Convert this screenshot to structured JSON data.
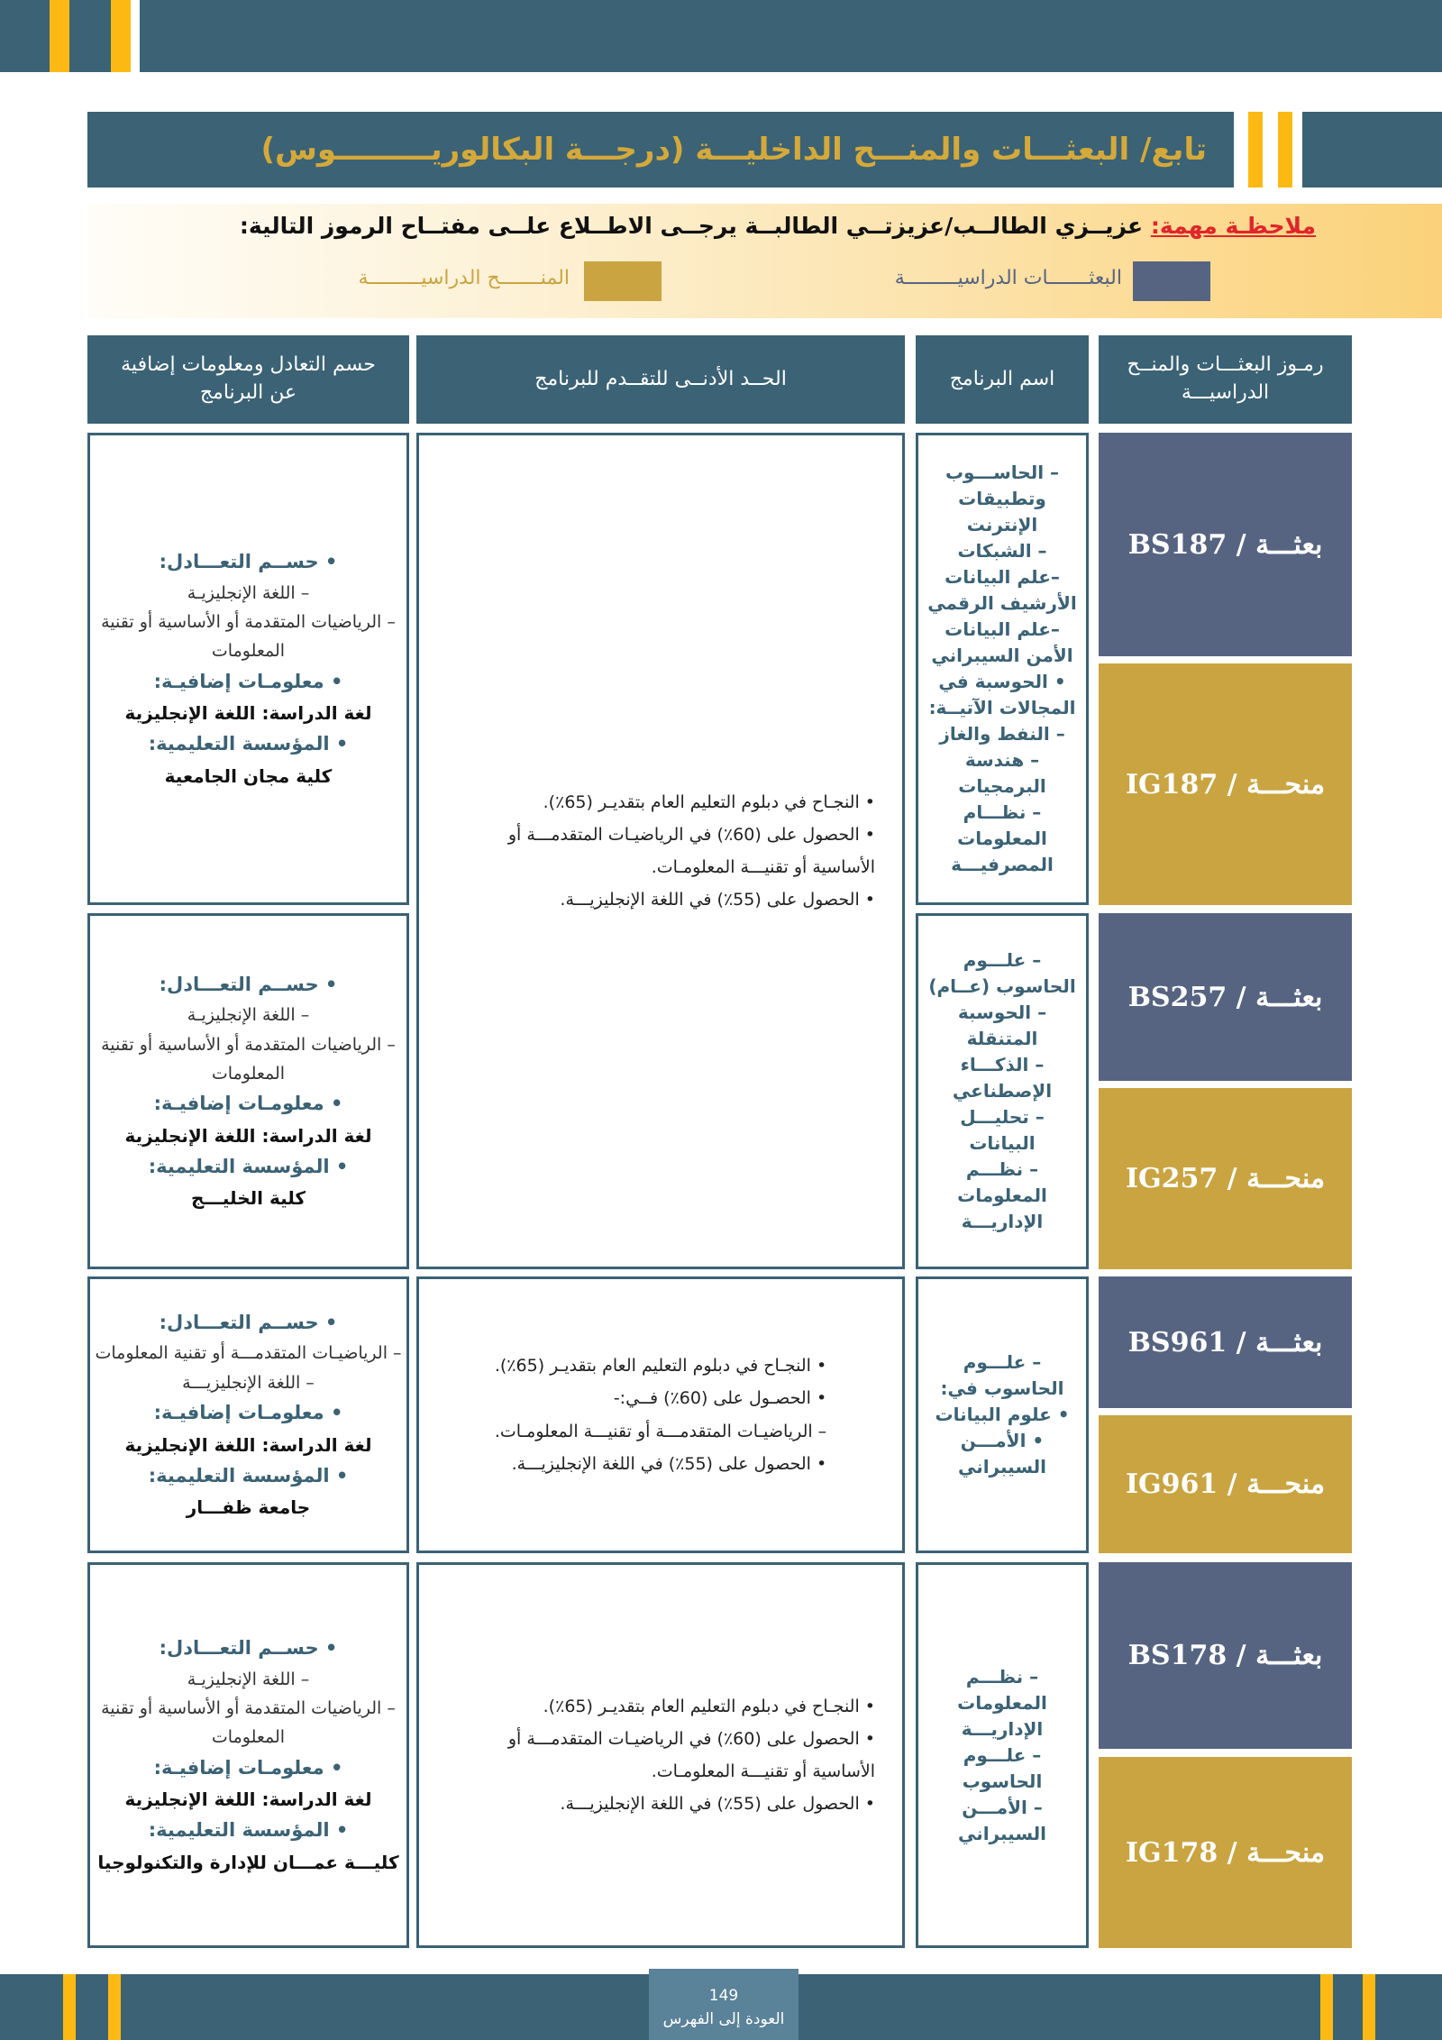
{
  "title": "تابع/ البعثـــات والمنـــح الداخليـــة (درجـــة البكالوريـــــــــوس)",
  "note": {
    "label": "ملاحظـة مهمة:",
    "text": " عزيــزي الطالــب/عزيزتــي الطالبــة يرجــى الاطــلاع علــى مفتــاح الرموز التالية:"
  },
  "legend": [
    {
      "label": "البعثـــــــات الدراسيـــــــــة",
      "color": "#566482"
    },
    {
      "label": "المنـــــــح الدراسيـــــــــة",
      "color": "#c9a440"
    }
  ],
  "headers": [
    "رمـوز البعثـــات والمنــح الدراسيـــة",
    "اسم البرنامج",
    "الحــد الأدنــى للتقــدم للبرنامج",
    "حسم التعادل ومعلومات إضافية عن البرنامج"
  ],
  "rows": [
    {
      "bs": "BS187 / بعثـــة",
      "ig": "IG187 / منحـــة",
      "program": [
        "– الحاســـوب وتطبيقات الإنترنت",
        "– الشبكات",
        "–علم البيانات الأرشيف الرقمي",
        "–علم البيانات الأمن السيبراني",
        "• الحوسبة في المجالات الآتيــة:",
        "– النفط والغاز",
        "– هندسة البرمجيات",
        "– نظـــام المعلومات المصرفيـــة"
      ],
      "info": [
        "• حســم التعـــادل:",
        "– اللغة الإنجليزيـة",
        "– الرياضيات المتقدمة أو الأساسية أو تقنية المعلومات",
        "• معلومـات إضافيـة:",
        "لغة الدراسة: اللغة الإنجليزية",
        "• المؤسسة التعليمية:",
        "كلية مجان الجامعية"
      ]
    },
    {
      "bs": "BS257 / بعثـــة",
      "ig": "IG257 / منحـــة",
      "program": [
        "– علـــوم الحاسوب (عــام)",
        "– الحوسبة المتنقلة",
        "– الذكـــاء الإصطناعي",
        "– تحليـــل البيانات",
        "– نظـــم المعلومات الإداريـــة"
      ],
      "info": [
        "• حســم التعـــادل:",
        "– اللغة الإنجليزيـة",
        "– الرياضيات المتقدمة أو الأساسية أو تقنية المعلومات",
        "• معلومـات إضافيـة:",
        "لغة الدراسة: اللغة الإنجليزية",
        "• المؤسسة التعليمية:",
        "كلية الخليـــج"
      ]
    },
    {
      "bs": "BS961 / بعثـــة",
      "ig": "IG961 / منحـــة",
      "program": [
        "– علـــوم الحاسوب في:",
        "• علوم البيانات",
        "• الأمـــن السيبراني"
      ],
      "requirements": [
        "• النجـاح في دبلوم التعليم العام بتقديـر (65٪).",
        "• الحصـول على (60٪) فــي:-",
        "– الرياضيـات المتقدمـــة أو تقنيـــة المعلومـات.",
        "• الحصول على (55٪) في اللغة الإنجليزيـــة."
      ],
      "info": [
        "• حســم التعـــادل:",
        "– الرياضيـات المتقدمـــة أو تقنية المعلومات",
        "– اللغة الإنجليزيـــة",
        "• معلومـات إضافيـة:",
        "لغة الدراسة: اللغة الإنجليزية",
        "• المؤسسة التعليمية:",
        "جامعة ظفـــار"
      ]
    },
    {
      "bs": "BS178 / بعثـــة",
      "ig": "IG178 / منحـــة",
      "program": [
        "– نظـــم المعلومات الإداريـــة",
        "– علـــوم الحاسوب",
        "– الأمـــن السيبراني"
      ],
      "requirements": [
        "• النجـاح في دبلوم التعليم العام بتقديـر (65٪).",
        "• الحصول على (60٪) في الرياضيـات المتقدمـــة أو الأساسية أو تقنيـــة المعلومـات.",
        "• الحصول على (55٪) في اللغة الإنجليزيـــة."
      ],
      "info": [
        "• حســم التعـــادل:",
        "– اللغة الإنجليزيـة",
        "– الرياضيات المتقدمة أو الأساسية أو تقنية المعلومات",
        "• معلومـات إضافيـة:",
        "لغة الدراسة: اللغة الإنجليزية",
        "• المؤسسة التعليمية:",
        "كليـــة عمـــان للإدارة والتكنولوجيا"
      ]
    }
  ],
  "shared_requirements": [
    "• النجـاح في دبلوم التعليم العام بتقديـر (65٪).",
    "• الحصول على (60٪) في الرياضيـات المتقدمـــة أو الأساسية أو تقنيـــة المعلومـات.",
    "• الحصول على (55٪) في اللغة الإنجليزيـــة."
  ],
  "footer": {
    "page": "149",
    "link": "العودة إلى الفهرس"
  }
}
